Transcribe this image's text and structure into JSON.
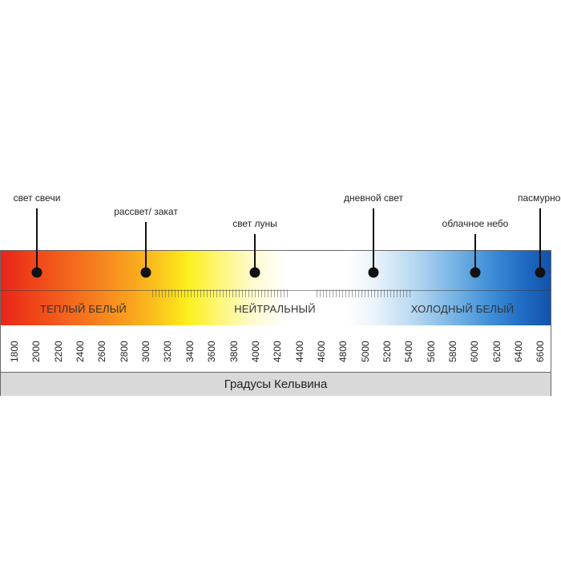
{
  "markers": [
    {
      "key": "candle",
      "label": "свет свечи"
    },
    {
      "key": "sunrise",
      "label": "рассвет/ закат"
    },
    {
      "key": "moon",
      "label": "свет луны"
    },
    {
      "key": "daylight",
      "label": "дневной свет"
    },
    {
      "key": "cloudy",
      "label": "облачное небо"
    },
    {
      "key": "overcast",
      "label": "пасмурно"
    }
  ],
  "zones": [
    {
      "key": "warm",
      "label": "ТЕПЛЫЙ БЕЛЫЙ"
    },
    {
      "key": "neutral",
      "label": "НЕЙТРАЛЬНЫЙ"
    },
    {
      "key": "cool",
      "label": "ХОЛОДНЫЙ БЕЛЫЙ"
    }
  ],
  "scale": {
    "ticks": [
      "1800",
      "2000",
      "2200",
      "2400",
      "2600",
      "2800",
      "3000",
      "3200",
      "3400",
      "3600",
      "3800",
      "4000",
      "4200",
      "4400",
      "4600",
      "4800",
      "5000",
      "5200",
      "5400",
      "5600",
      "5800",
      "6000",
      "6200",
      "6400",
      "6600"
    ],
    "unit_label": "Градусы Кельвина"
  },
  "colors": {
    "warm": "#e8241a",
    "neutral": "#ffffff",
    "cool": "#1452aa"
  }
}
